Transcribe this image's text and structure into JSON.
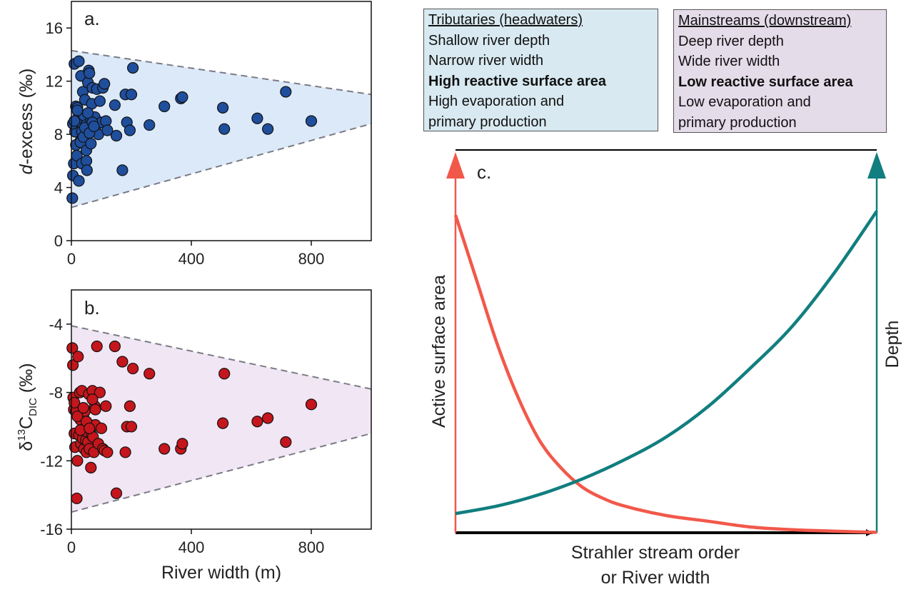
{
  "chart_data": [
    {
      "panel": "a.",
      "type": "scatter",
      "xlabel": "",
      "ylabel_italic": "d",
      "ylabel_rest": "-excess (‰)",
      "xlim": [
        0,
        1000
      ],
      "ylim": [
        0,
        18
      ],
      "xticks": [
        0,
        400,
        800
      ],
      "yticks": [
        0,
        4,
        8,
        12,
        16
      ],
      "xtick_labels": [
        "0",
        "400",
        "800"
      ],
      "ytick_labels": [
        "0",
        "4",
        "8",
        "12",
        "16"
      ],
      "marker_color": "#1f4e9c",
      "envelope_color": "#dce9f8",
      "envelope_upper": [
        [
          0,
          14.3
        ],
        [
          1000,
          11.0
        ]
      ],
      "envelope_lower": [
        [
          0,
          2.5
        ],
        [
          1000,
          8.8
        ]
      ],
      "x": [
        3,
        5,
        8,
        10,
        12,
        15,
        18,
        20,
        22,
        25,
        28,
        30,
        32,
        35,
        38,
        40,
        42,
        45,
        48,
        50,
        52,
        55,
        58,
        60,
        62,
        65,
        68,
        70,
        72,
        75,
        78,
        80,
        85,
        90,
        95,
        100,
        105,
        110,
        115,
        120,
        145,
        150,
        170,
        180,
        185,
        195,
        200,
        205,
        260,
        310,
        365,
        370,
        505,
        510,
        620,
        655,
        715,
        800,
        5,
        10,
        15,
        20,
        25,
        30,
        35,
        40,
        45,
        50,
        55,
        60,
        65,
        70,
        75
      ],
      "y": [
        3.2,
        4.9,
        5.8,
        13.3,
        8.2,
        10.1,
        6.4,
        10.0,
        9.7,
        13.5,
        8.9,
        7.5,
        12.4,
        5.8,
        11.2,
        8.0,
        9.4,
        10.6,
        8.7,
        6.0,
        5.3,
        11.9,
        12.8,
        12.6,
        8.7,
        9.0,
        10.3,
        11.5,
        8.4,
        8.8,
        9.3,
        8.5,
        11.4,
        8.0,
        10.5,
        8.9,
        11.5,
        11.8,
        9.0,
        8.3,
        10.2,
        7.9,
        5.3,
        11.0,
        8.9,
        8.3,
        11.0,
        13.0,
        8.7,
        10.1,
        10.7,
        10.8,
        10.0,
        8.4,
        9.2,
        8.4,
        11.2,
        9.0,
        8.8,
        9.0,
        7.2,
        9.8,
        4.5,
        7.4,
        8.2,
        7.8,
        8.5,
        6.8,
        9.6,
        8.1,
        7.3,
        8.9,
        8.6
      ]
    },
    {
      "panel": "b.",
      "type": "scatter",
      "xlabel": "River width (m)",
      "ylabel_delta": "δ",
      "ylabel_sup": "13",
      "ylabel_main": "C",
      "ylabel_sub": "DIC",
      "ylabel_unit": " (‰)",
      "xlim": [
        0,
        1000
      ],
      "ylim": [
        -16,
        -2
      ],
      "xticks": [
        0,
        400,
        800
      ],
      "yticks": [
        -16,
        -12,
        -8,
        -4
      ],
      "xtick_labels": [
        "0",
        "400",
        "800"
      ],
      "ytick_labels": [
        "-16",
        "-12",
        "-8",
        "-4"
      ],
      "marker_color": "#c4161c",
      "envelope_color": "#f0e6f4",
      "envelope_upper": [
        [
          0,
          -4.1
        ],
        [
          1000,
          -7.8
        ]
      ],
      "envelope_lower": [
        [
          0,
          -15.0
        ],
        [
          1000,
          -10.4
        ]
      ],
      "x": [
        3,
        5,
        6,
        8,
        10,
        12,
        15,
        18,
        20,
        22,
        25,
        28,
        30,
        32,
        35,
        38,
        40,
        42,
        45,
        48,
        50,
        52,
        55,
        58,
        60,
        62,
        65,
        68,
        70,
        72,
        75,
        78,
        80,
        85,
        90,
        95,
        100,
        105,
        110,
        115,
        120,
        145,
        150,
        170,
        180,
        185,
        195,
        200,
        205,
        260,
        310,
        365,
        370,
        505,
        510,
        620,
        655,
        715,
        800,
        10,
        20,
        30,
        40,
        50,
        60,
        70,
        80
      ],
      "y": [
        -5.4,
        -6.4,
        -8.3,
        -9.0,
        -10.4,
        -11.2,
        -9.1,
        -14.2,
        -12.0,
        -5.9,
        -10.5,
        -8.0,
        -9.6,
        -11.0,
        -7.9,
        -10.7,
        -9.3,
        -11.3,
        -9.1,
        -10.8,
        -11.5,
        -10.3,
        -10.9,
        -8.1,
        -11.3,
        -9.9,
        -12.4,
        -10.5,
        -7.9,
        -10.6,
        -11.5,
        -8.8,
        -9.9,
        -5.3,
        -11.0,
        -8.0,
        -10.1,
        -11.3,
        -11.4,
        -8.8,
        -11.5,
        -5.3,
        -13.9,
        -6.2,
        -11.5,
        -10.0,
        -8.8,
        -10.0,
        -6.6,
        -6.9,
        -11.3,
        -11.3,
        -11.0,
        -9.8,
        -6.9,
        -9.7,
        -9.5,
        -10.9,
        -8.7,
        -8.6,
        -9.4,
        -10.2,
        -8.9,
        -9.7,
        -10.1,
        -8.4,
        -9.0
      ]
    },
    {
      "panel": "c.",
      "type": "line",
      "xlabel_line1": "Strahler stream order",
      "xlabel_line2": "or River width",
      "left_label": "Active surface area",
      "right_label": "Depth",
      "series": [
        {
          "name": "Active surface area",
          "color": "#f2584a",
          "values": [
            [
              0,
              0.83
            ],
            [
              0.05,
              0.66
            ],
            [
              0.1,
              0.49
            ],
            [
              0.15,
              0.35
            ],
            [
              0.2,
              0.24
            ],
            [
              0.25,
              0.17
            ],
            [
              0.3,
              0.12
            ],
            [
              0.35,
              0.09
            ],
            [
              0.4,
              0.07
            ],
            [
              0.5,
              0.045
            ],
            [
              0.6,
              0.03
            ],
            [
              0.7,
              0.015
            ],
            [
              0.8,
              0.008
            ],
            [
              0.9,
              0.004
            ],
            [
              1.0,
              0.001
            ]
          ]
        },
        {
          "name": "Depth",
          "color": "#117e7f",
          "values": [
            [
              0,
              0.05
            ],
            [
              0.1,
              0.07
            ],
            [
              0.2,
              0.1
            ],
            [
              0.3,
              0.14
            ],
            [
              0.4,
              0.19
            ],
            [
              0.5,
              0.25
            ],
            [
              0.6,
              0.33
            ],
            [
              0.7,
              0.43
            ],
            [
              0.8,
              0.54
            ],
            [
              0.9,
              0.68
            ],
            [
              1.0,
              0.84
            ]
          ]
        }
      ]
    }
  ],
  "boxes": {
    "tributaries": {
      "title": "Tributaries (headwaters)",
      "line1": "Shallow river depth",
      "line2": "Narrow river width",
      "line3_bold": "High reactive surface area",
      "line4": "High evaporation and",
      "line5": "primary production"
    },
    "mainstreams": {
      "title": "Mainstreams (downstream)",
      "line1": "Deep river depth",
      "line2": "Wide river width",
      "line3_bold": "Low reactive surface area",
      "line4": "Low evaporation and",
      "line5": "primary production"
    }
  }
}
